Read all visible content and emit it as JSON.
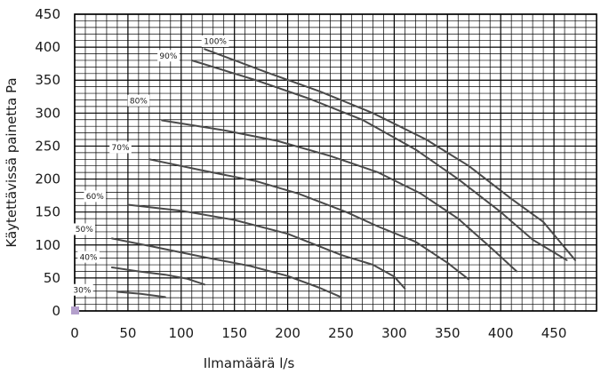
{
  "chart_data": {
    "type": "line",
    "xlabel": "Ilmamäärä l/s",
    "ylabel": "Käytettävissä painetta Pa",
    "xlim": [
      0,
      490
    ],
    "ylim": [
      0,
      450
    ],
    "xticks": [
      0,
      50,
      100,
      150,
      200,
      250,
      300,
      350,
      400,
      450
    ],
    "yticks": [
      0,
      50,
      100,
      150,
      200,
      250,
      300,
      350,
      400,
      450
    ],
    "grid": true,
    "series": [
      {
        "name": "30%",
        "label_at": [
          7,
          32
        ],
        "points": [
          [
            40,
            29
          ],
          [
            62,
            26
          ],
          [
            85,
            21
          ]
        ]
      },
      {
        "name": "40%",
        "label_at": [
          13,
          82
        ],
        "points": [
          [
            35,
            66
          ],
          [
            60,
            60
          ],
          [
            85,
            55
          ],
          [
            105,
            49
          ],
          [
            122,
            40
          ]
        ]
      },
      {
        "name": "50%",
        "label_at": [
          9,
          124
        ],
        "points": [
          [
            35,
            110
          ],
          [
            75,
            97
          ],
          [
            120,
            82
          ],
          [
            165,
            68
          ],
          [
            200,
            53
          ],
          [
            230,
            35
          ],
          [
            250,
            21
          ]
        ]
      },
      {
        "name": "60%",
        "label_at": [
          19,
          174
        ],
        "points": [
          [
            50,
            161
          ],
          [
            100,
            152
          ],
          [
            150,
            138
          ],
          [
            200,
            117
          ],
          [
            250,
            85
          ],
          [
            280,
            70
          ],
          [
            300,
            52
          ],
          [
            310,
            34
          ]
        ]
      },
      {
        "name": "70%",
        "label_at": [
          43,
          248
        ],
        "points": [
          [
            70,
            230
          ],
          [
            120,
            213
          ],
          [
            170,
            197
          ],
          [
            210,
            178
          ],
          [
            255,
            150
          ],
          [
            285,
            128
          ],
          [
            320,
            105
          ],
          [
            350,
            73
          ],
          [
            370,
            48
          ]
        ]
      },
      {
        "name": "80%",
        "label_at": [
          60,
          319
        ],
        "points": [
          [
            82,
            289
          ],
          [
            140,
            274
          ],
          [
            190,
            258
          ],
          [
            240,
            235
          ],
          [
            285,
            210
          ],
          [
            325,
            178
          ],
          [
            360,
            140
          ],
          [
            390,
            97
          ],
          [
            415,
            60
          ]
        ]
      },
      {
        "name": "90%",
        "label_at": [
          88,
          387
        ],
        "points": [
          [
            110,
            380
          ],
          [
            170,
            350
          ],
          [
            220,
            322
          ],
          [
            270,
            290
          ],
          [
            320,
            245
          ],
          [
            360,
            200
          ],
          [
            400,
            150
          ],
          [
            430,
            108
          ],
          [
            462,
            77
          ]
        ]
      },
      {
        "name": "100%",
        "label_at": [
          132,
          409
        ],
        "points": [
          [
            122,
            397
          ],
          [
            180,
            362
          ],
          [
            230,
            333
          ],
          [
            280,
            300
          ],
          [
            330,
            260
          ],
          [
            370,
            220
          ],
          [
            410,
            170
          ],
          [
            440,
            135
          ],
          [
            470,
            77
          ]
        ]
      }
    ]
  }
}
